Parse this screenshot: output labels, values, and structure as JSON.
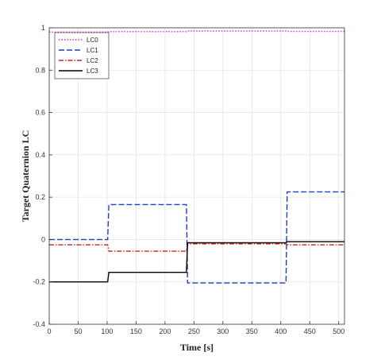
{
  "chart_data": {
    "type": "line",
    "xlabel": "Time [s]",
    "ylabel": "Target Quaternion LC",
    "xlim": [
      0,
      510
    ],
    "ylim": [
      -0.4,
      1
    ],
    "xticks": [
      0,
      50,
      100,
      150,
      200,
      250,
      300,
      350,
      400,
      450,
      500
    ],
    "yticks": [
      -0.4,
      -0.2,
      0,
      0.2,
      0.4,
      0.6,
      0.8,
      1
    ],
    "ytick_labels": [
      "-0.4",
      "-0.2",
      "0",
      "0.2",
      "0.4",
      "0.6",
      "0.8",
      "1"
    ],
    "grid": true,
    "legend_position": "top-left",
    "series": [
      {
        "name": "LC0",
        "color": "#cc33cc",
        "style": "dotted",
        "x": [
          0,
          101,
          103,
          237,
          239,
          409,
          411,
          510
        ],
        "y": [
          0.98,
          0.98,
          0.982,
          0.982,
          0.985,
          0.985,
          0.983,
          0.983
        ]
      },
      {
        "name": "LC1",
        "color": "#1f3fbf",
        "style": "dashed",
        "x": [
          0,
          101,
          103,
          237,
          239,
          409,
          411,
          510
        ],
        "y": [
          0.0,
          0.0,
          0.165,
          0.165,
          -0.205,
          -0.205,
          0.225,
          0.225
        ]
      },
      {
        "name": "LC2",
        "color": "#cc2222",
        "style": "dashdot",
        "x": [
          0,
          101,
          103,
          237,
          239,
          409,
          411,
          510
        ],
        "y": [
          -0.025,
          -0.025,
          -0.055,
          -0.055,
          -0.02,
          -0.02,
          -0.025,
          -0.025
        ]
      },
      {
        "name": "LC3",
        "color": "#000000",
        "style": "solid",
        "x": [
          0,
          101,
          103,
          237,
          239,
          409,
          411,
          510
        ],
        "y": [
          -0.2,
          -0.2,
          -0.155,
          -0.155,
          -0.015,
          -0.015,
          -0.01,
          -0.01
        ]
      }
    ]
  }
}
